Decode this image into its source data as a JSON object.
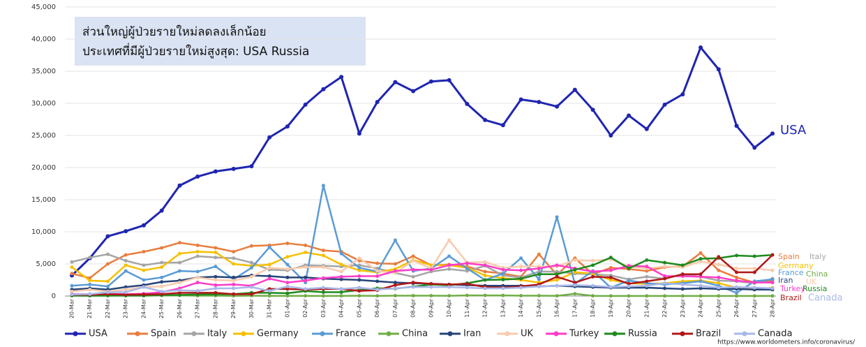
{
  "chart_data": {
    "type": "line",
    "annotations": [
      "ส่วนใหญ่ผู้ป่วยรายใหม่ลดลงเล็กน้อย",
      "ประเทศที่มีผู้ป่วยรายใหม่สูงสุด: USA Russia"
    ],
    "source": "https://www.worldometers.info/coronavirus/",
    "categories": [
      "20-Mar",
      "21-Mar",
      "22-Mar",
      "23-Mar",
      "24-Mar",
      "25-Mar",
      "26-Mar",
      "27-Mar",
      "28-Mar",
      "29-Mar",
      "30-Mar",
      "31-Mar",
      "01-Apr",
      "02-Apr",
      "03-Apr",
      "04-Apr",
      "05-Apr",
      "06-Apr",
      "07-Apr",
      "08-Apr",
      "09-Apr",
      "10-Apr",
      "11-Apr",
      "12-Apr",
      "13-Apr",
      "14-Apr",
      "15-Apr",
      "16-Apr",
      "17-Apr",
      "18-Apr",
      "19-Apr",
      "20-Apr",
      "21-Apr",
      "22-Apr",
      "23-Apr",
      "24-Apr",
      "25-Apr",
      "26-Apr",
      "27-Apr",
      "28-Apr"
    ],
    "ylim": [
      0,
      45000
    ],
    "yticks": [
      0,
      {
        "value": 5000,
        "label": "5,000"
      },
      {
        "value": 10000,
        "label": "10,000"
      },
      {
        "value": 15000,
        "label": "15,000"
      },
      {
        "value": 20000,
        "label": "20,000"
      },
      {
        "value": 25000,
        "label": "25,000"
      },
      {
        "value": 30000,
        "label": "30,000"
      },
      {
        "value": 35000,
        "label": "35,000"
      },
      {
        "value": 40000,
        "label": "40,000"
      },
      {
        "value": 45000,
        "label": "45,000"
      }
    ],
    "grid": true,
    "legend": "bottom",
    "series": [
      {
        "name": "USA",
        "color": "#1f25b0",
        "values": [
          3200,
          5900,
          9300,
          10100,
          11000,
          13300,
          17200,
          18600,
          19400,
          19800,
          20200,
          24700,
          26400,
          29800,
          32200,
          34100,
          25300,
          30200,
          33300,
          31900,
          33400,
          33600,
          29900,
          27400,
          26600,
          30600,
          30200,
          29500,
          32100,
          29000,
          25000,
          28100,
          26000,
          29800,
          31400,
          38700,
          35300,
          26500,
          23100,
          25300
        ]
      },
      {
        "name": "Spain",
        "color": "#e87d3e",
        "values": [
          3500,
          2800,
          5000,
          6400,
          6900,
          7500,
          8300,
          7900,
          7500,
          6900,
          7800,
          7900,
          8200,
          7900,
          7100,
          6900,
          5500,
          5100,
          5000,
          6200,
          4800,
          4900,
          4600,
          3800,
          3500,
          3000,
          6500,
          3300,
          5900,
          3400,
          4400,
          4200,
          3900,
          4500,
          4600,
          6700,
          4000,
          2900,
          2100,
          2400
        ]
      },
      {
        "name": "Italy",
        "color": "#a5a5a5",
        "values": [
          5300,
          6000,
          6500,
          5500,
          4800,
          5200,
          5200,
          6200,
          6000,
          5900,
          5200,
          4100,
          4000,
          4800,
          4700,
          4600,
          4800,
          4300,
          3600,
          3000,
          3800,
          4200,
          3900,
          4700,
          3200,
          2900,
          3800,
          3800,
          3500,
          3400,
          3200,
          2600,
          3000,
          2700,
          3400,
          3000,
          2400,
          2300,
          2000,
          2700
        ]
      },
      {
        "name": "Germany",
        "color": "#f5c000",
        "values": [
          4500,
          2400,
          2300,
          4800,
          4000,
          4500,
          6600,
          6900,
          6800,
          5000,
          4700,
          4900,
          6100,
          6800,
          6300,
          4900,
          4000,
          3700,
          4200,
          5600,
          4800,
          4800,
          4400,
          3200,
          2800,
          2500,
          2100,
          2500,
          3700,
          3500,
          2500,
          2000,
          1900,
          2000,
          2300,
          2400,
          2000,
          1300,
          1000,
          1300
        ]
      },
      {
        "name": "France",
        "color": "#5b9bd5",
        "values": [
          1600,
          1800,
          1500,
          3900,
          2500,
          2900,
          3900,
          3800,
          4600,
          2600,
          4400,
          7600,
          4900,
          2100,
          17200,
          6600,
          4400,
          3800,
          8700,
          3900,
          4300,
          6200,
          4300,
          2500,
          3500,
          5900,
          2600,
          12300,
          1900,
          3900,
          1300,
          2400,
          2000,
          1800,
          2000,
          2300,
          1600,
          500,
          2300,
          2600
        ]
      },
      {
        "name": "China",
        "color": "#70ad47",
        "values": [
          100,
          50,
          50,
          100,
          50,
          100,
          100,
          50,
          50,
          30,
          50,
          30,
          30,
          30,
          20,
          30,
          40,
          30,
          60,
          60,
          50,
          40,
          100,
          100,
          90,
          50,
          50,
          30,
          350,
          30,
          20,
          10,
          10,
          10,
          10,
          10,
          10,
          10,
          10,
          10
        ]
      },
      {
        "name": "Iran",
        "color": "#264478",
        "values": [
          1000,
          1200,
          1000,
          1400,
          1700,
          2200,
          2400,
          2900,
          3000,
          2900,
          3200,
          3100,
          2900,
          2900,
          2700,
          2600,
          2500,
          2300,
          2100,
          2000,
          1900,
          1800,
          1700,
          1600,
          1600,
          1600,
          1500,
          1600,
          1500,
          1400,
          1300,
          1300,
          1300,
          1200,
          1100,
          1200,
          1100,
          1100,
          1000,
          1000
        ]
      },
      {
        "name": "UK",
        "color": "#f8cbad",
        "values": [
          700,
          1000,
          700,
          1000,
          1400,
          1500,
          2100,
          2900,
          2500,
          2400,
          3000,
          4400,
          4200,
          4500,
          4500,
          3800,
          5900,
          3900,
          3600,
          5500,
          4300,
          8700,
          5200,
          5300,
          4400,
          4600,
          4600,
          4600,
          5600,
          5500,
          5700,
          4600,
          4300,
          4600,
          4500,
          5400,
          4900,
          4300,
          4300,
          4000
        ]
      },
      {
        "name": "Turkey",
        "color": "#ff3cc7",
        "values": [
          300,
          300,
          300,
          300,
          350,
          600,
          1200,
          2100,
          1700,
          1800,
          1600,
          2700,
          2100,
          2400,
          2800,
          3000,
          3100,
          3100,
          3900,
          4100,
          4100,
          4800,
          5100,
          4800,
          4100,
          4000,
          4300,
          4800,
          4300,
          3800,
          4000,
          4700,
          4600,
          3100,
          3100,
          3000,
          2900,
          2400,
          2100,
          2100
        ]
      },
      {
        "name": "Russia",
        "color": "#1e8a1e",
        "values": [
          50,
          50,
          70,
          60,
          70,
          150,
          180,
          230,
          270,
          300,
          500,
          500,
          440,
          770,
          600,
          600,
          950,
          1200,
          1150,
          1460,
          1790,
          1670,
          2000,
          2500,
          2550,
          2700,
          3400,
          3400,
          4100,
          4800,
          6000,
          4300,
          5600,
          5200,
          4800,
          5800,
          5900,
          6300,
          6200,
          6400
        ]
      },
      {
        "name": "Brazil",
        "color": "#b01818",
        "values": [
          200,
          200,
          300,
          200,
          250,
          300,
          500,
          500,
          500,
          300,
          300,
          1100,
          1100,
          1000,
          1100,
          1100,
          800,
          900,
          1700,
          2100,
          1900,
          1800,
          1900,
          1400,
          1300,
          1500,
          1800,
          3000,
          2100,
          3000,
          2900,
          1900,
          2300,
          2700,
          3400,
          3400,
          6100,
          3700,
          3700,
          6400
        ]
      },
      {
        "name": "Canada",
        "color": "#a9b7e8",
        "values": [
          250,
          300,
          600,
          600,
          1400,
          700,
          900,
          800,
          1200,
          1200,
          1400,
          800,
          1500,
          1100,
          1300,
          1100,
          1300,
          1000,
          1200,
          1400,
          1400,
          1400,
          1300,
          1200,
          1200,
          1300,
          1500,
          1600,
          1700,
          1600,
          1400,
          1500,
          1600,
          2000,
          1800,
          1600,
          1300,
          1400,
          1300,
          1200
        ]
      }
    ]
  }
}
